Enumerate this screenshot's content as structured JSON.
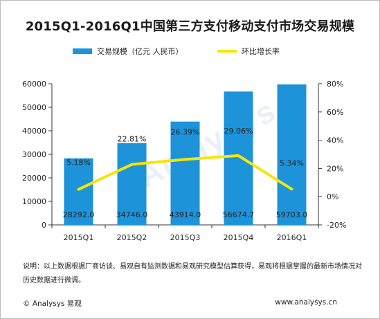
{
  "chart_data": {
    "type": "bar+line",
    "title": "2015Q1-2016Q1中国第三方支付移动支付市场交易规模",
    "categories": [
      "2015Q1",
      "2015Q2",
      "2015Q3",
      "2015Q4",
      "2016Q1"
    ],
    "series": [
      {
        "name": "交易规模（亿元 人民币）",
        "type": "bar",
        "axis": "left",
        "color": "#1d93d9",
        "values": [
          28292.0,
          34746.0,
          43914.0,
          56674.7,
          59703.0
        ],
        "labels": [
          "28292.0",
          "34746.0",
          "43914.0",
          "56674.7",
          "59703.0"
        ]
      },
      {
        "name": "环比增长率",
        "type": "line",
        "axis": "right",
        "color": "#f5e60a",
        "values": [
          5.18,
          22.81,
          26.39,
          29.06,
          5.34
        ],
        "labels": [
          "5.18%",
          "22.81%",
          "26.39%",
          "29.06%",
          "5.34%"
        ]
      }
    ],
    "left_axis": {
      "range": [
        0,
        60000
      ],
      "ticks": [
        "0",
        "10000",
        "20000",
        "30000",
        "40000",
        "50000",
        "60000"
      ]
    },
    "right_axis": {
      "range": [
        -20,
        80
      ],
      "ticks": [
        "-20%",
        "0%",
        "20%",
        "40%",
        "60%",
        "80%"
      ]
    },
    "grid": false,
    "legend": "top"
  },
  "note": "说明：以上数据根据厂商访谈、易观自有监测数据和易观研究模型估算获得，易观将根据掌握的最新市场情况对历史数据进行微调。",
  "footer": {
    "brand": "© Analysys 易观",
    "url": "www.analysys.cn"
  },
  "watermark": "Analysys"
}
